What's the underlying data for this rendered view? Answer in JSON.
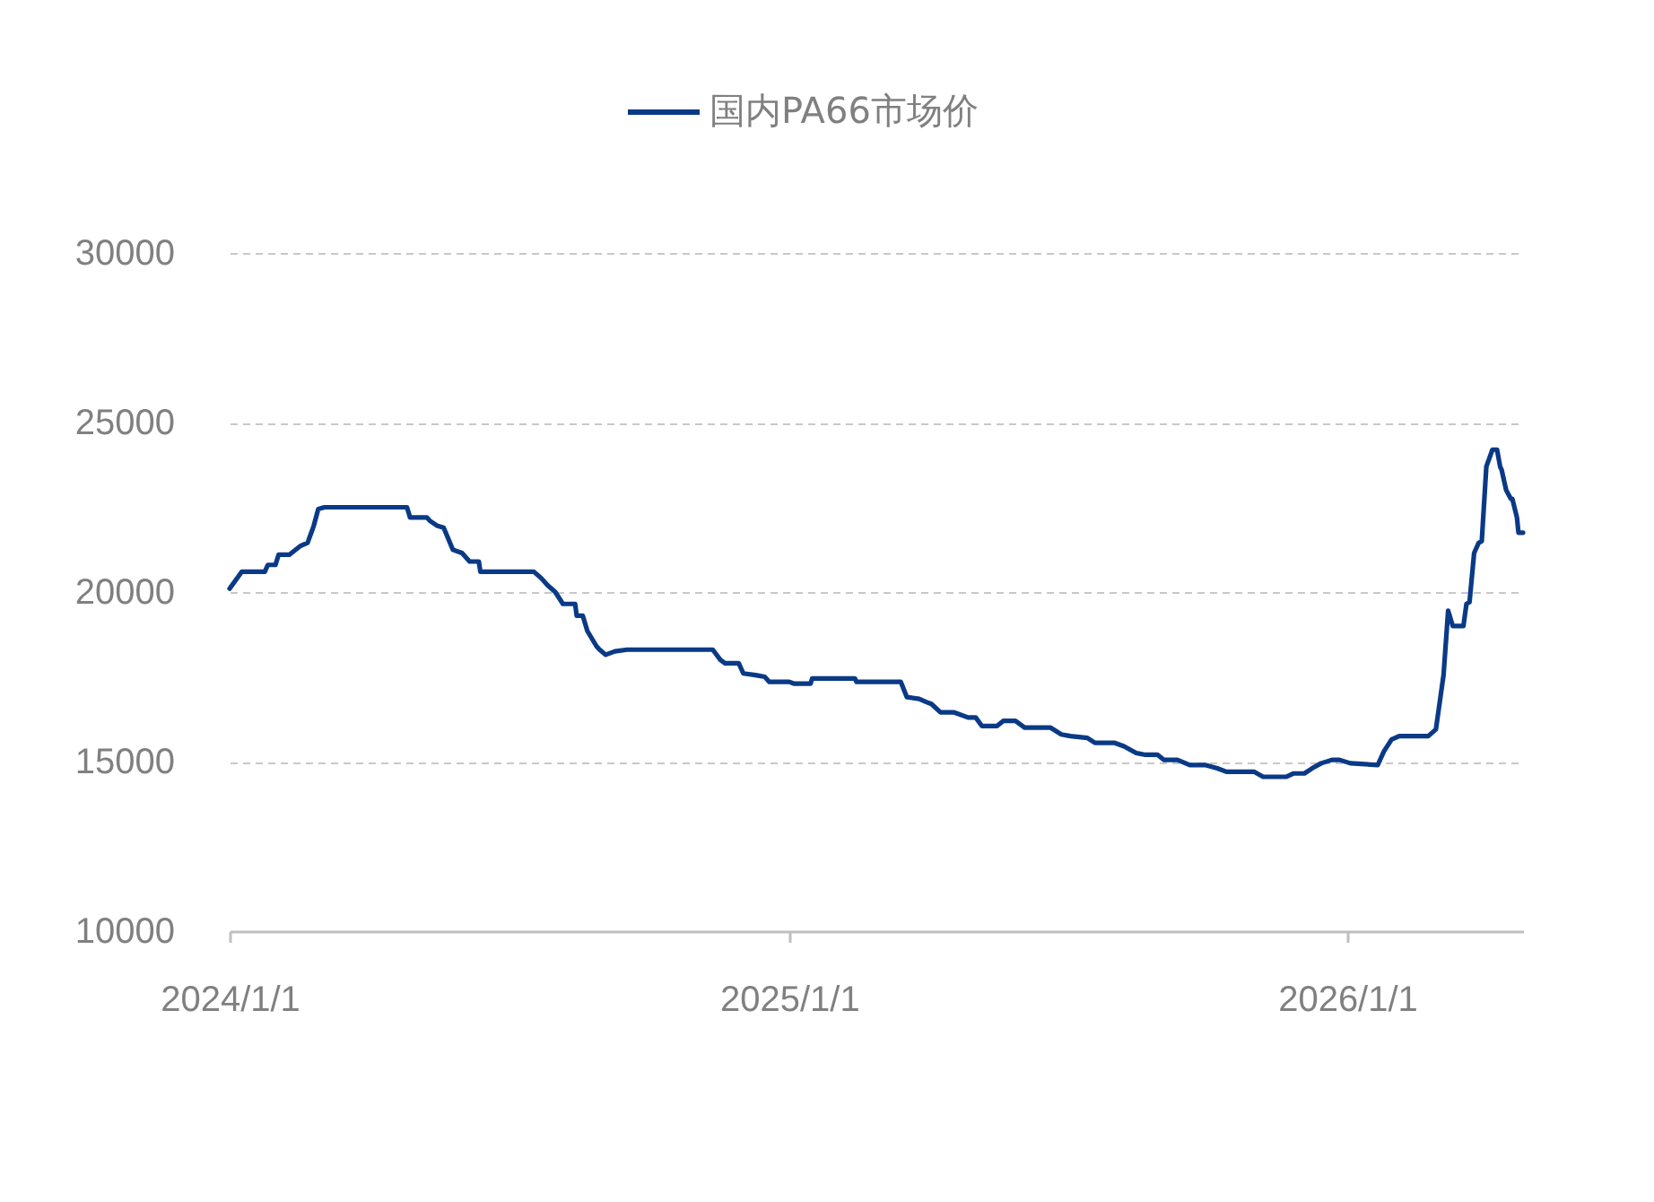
{
  "chart_data": {
    "type": "line",
    "x": [
      "2024-01-01",
      "2024-01-09",
      "2024-01-24",
      "2024-01-26",
      "2024-01-31",
      "2024-02-02",
      "2024-02-09",
      "2024-02-16",
      "2024-02-21",
      "2024-02-25",
      "2024-02-28",
      "2024-03-03",
      "2024-04-26",
      "2024-04-28",
      "2024-05-09",
      "2024-05-11",
      "2024-05-16",
      "2024-05-20",
      "2024-05-26",
      "2024-06-01",
      "2024-06-06",
      "2024-06-12",
      "2024-06-13",
      "2024-07-18",
      "2024-07-23",
      "2024-07-27",
      "2024-08-01",
      "2024-08-06",
      "2024-08-14",
      "2024-08-15",
      "2024-08-19",
      "2024-08-22",
      "2024-08-28",
      "2024-08-30",
      "2024-09-03",
      "2024-09-09",
      "2024-09-17",
      "2024-11-12",
      "2024-11-17",
      "2024-11-20",
      "2024-11-29",
      "2024-12-02",
      "2024-12-10",
      "2024-12-16",
      "2024-12-19",
      "2025-01-01",
      "2025-01-04",
      "2025-01-15",
      "2025-01-16",
      "2025-02-13",
      "2025-02-14",
      "2025-03-15",
      "2025-03-19",
      "2025-03-27",
      "2025-04-01",
      "2025-04-04",
      "2025-04-10",
      "2025-04-19",
      "2025-04-28",
      "2025-05-03",
      "2025-05-07",
      "2025-05-17",
      "2025-05-21",
      "2025-05-29",
      "2025-06-04",
      "2025-06-21",
      "2025-06-28",
      "2025-07-04",
      "2025-07-15",
      "2025-07-20",
      "2025-08-02",
      "2025-08-08",
      "2025-08-16",
      "2025-08-22",
      "2025-08-30",
      "2025-09-03",
      "2025-09-12",
      "2025-09-20",
      "2025-09-30",
      "2025-10-08",
      "2025-10-14",
      "2025-11-01",
      "2025-11-07",
      "2025-11-22",
      "2025-11-27",
      "2025-12-04",
      "2025-12-09",
      "2025-12-15",
      "2025-12-22",
      "2025-12-27",
      "2026-01-03",
      "2026-01-21",
      "2026-01-25",
      "2026-01-30",
      "2026-02-04",
      "2026-02-23",
      "2026-02-28",
      "2026-03-05",
      "2026-03-08",
      "2026-03-11",
      "2026-03-18",
      "2026-03-20",
      "2026-03-22",
      "2026-03-25",
      "2026-03-26",
      "2026-03-28",
      "2026-03-30",
      "2026-04-02",
      "2026-04-06",
      "2026-04-09",
      "2026-04-11",
      "2026-04-12",
      "2026-04-15",
      "2026-04-18",
      "2026-04-19",
      "2026-04-22",
      "2026-04-23",
      "2026-04-26"
    ],
    "series": [
      {
        "name": "国内PA66市场价",
        "color": "#0a3a86",
        "values": [
          20100,
          20600,
          20600,
          20800,
          20800,
          21100,
          21100,
          21350,
          21450,
          21950,
          22450,
          22500,
          22500,
          22200,
          22200,
          22100,
          21950,
          21900,
          21250,
          21150,
          20900,
          20900,
          20600,
          20600,
          20400,
          20200,
          20000,
          19650,
          19650,
          19300,
          19300,
          18850,
          18400,
          18300,
          18150,
          18250,
          18300,
          18300,
          18000,
          17900,
          17900,
          17600,
          17550,
          17500,
          17350,
          17350,
          17300,
          17300,
          17450,
          17450,
          17350,
          17350,
          16900,
          16850,
          16750,
          16700,
          16450,
          16450,
          16300,
          16300,
          16050,
          16050,
          16200,
          16200,
          16000,
          16000,
          15800,
          15750,
          15700,
          15550,
          15550,
          15450,
          15250,
          15200,
          15200,
          15050,
          15050,
          14900,
          14900,
          14800,
          14700,
          14700,
          14550,
          14550,
          14650,
          14650,
          14800,
          14950,
          15050,
          15050,
          14950,
          14900,
          15300,
          15650,
          15750,
          15750,
          15950,
          17550,
          19450,
          19000,
          19000,
          19650,
          19700,
          21150,
          21250,
          21450,
          21500,
          23700,
          24200,
          24200,
          23700,
          23600,
          23000,
          22750,
          22750,
          22200,
          21750,
          21750
        ]
      }
    ],
    "xlim": [
      "2024-01-01",
      "2026-04-26"
    ],
    "xticks": [
      {
        "value": "2024-01-01",
        "label": "2024/1/1"
      },
      {
        "value": "2025-01-01",
        "label": "2025/1/1"
      },
      {
        "value": "2026-01-01",
        "label": "2026/1/1"
      }
    ],
    "ylim": [
      10000,
      30000
    ],
    "yticks": [
      10000,
      15000,
      20000,
      25000,
      30000
    ],
    "grid": "y",
    "legend": "top",
    "marker": "none",
    "line_style": "solid"
  }
}
